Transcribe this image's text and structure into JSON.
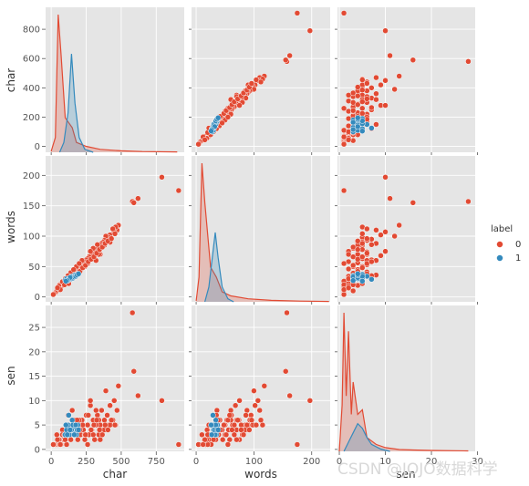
{
  "chart_data": {
    "type": "scatter",
    "kind": "pairplot",
    "variables": [
      "char",
      "words",
      "sen"
    ],
    "ranges": {
      "char": [
        -40,
        950
      ],
      "words": [
        -8,
        232
      ],
      "sen": [
        -0.4,
        29.5
      ]
    },
    "y_ranges": {
      "char": [
        -40,
        950
      ],
      "words": [
        -8,
        232
      ],
      "sen": [
        -0.4,
        29.5
      ]
    },
    "ticks": {
      "char": [
        0,
        250,
        500,
        750
      ],
      "words": [
        0,
        100,
        200
      ],
      "sen": [
        0,
        10,
        20,
        30
      ]
    },
    "y_ticks": {
      "char": [
        0,
        200,
        400,
        600,
        800
      ],
      "words": [
        0,
        50,
        100,
        150,
        200
      ],
      "sen": [
        0,
        5,
        10,
        15,
        20,
        25
      ]
    },
    "hue": "label",
    "legend": {
      "title": "label",
      "placement": "center-right",
      "entries": [
        "0",
        "1"
      ]
    },
    "colors": {
      "0": "#E24A33",
      "1": "#348ABD",
      "panel_bg": "#E5E5E5",
      "grid": "#ffffff"
    },
    "grid": true,
    "series": [
      {
        "name": "0",
        "points": [
          [
            910,
            175,
            1
          ],
          [
            790,
            197,
            10
          ],
          [
            620,
            162,
            11
          ],
          [
            580,
            157,
            28
          ],
          [
            590,
            155,
            16
          ],
          [
            480,
            118,
            13
          ],
          [
            470,
            110,
            8
          ],
          [
            460,
            115,
            5
          ],
          [
            450,
            107,
            10
          ],
          [
            440,
            112,
            6
          ],
          [
            420,
            102,
            9
          ],
          [
            410,
            98,
            5
          ],
          [
            400,
            95,
            7
          ],
          [
            390,
            100,
            12
          ],
          [
            380,
            93,
            6
          ],
          [
            370,
            90,
            4
          ],
          [
            360,
            88,
            8
          ],
          [
            350,
            85,
            5
          ],
          [
            340,
            82,
            3
          ],
          [
            330,
            86,
            7
          ],
          [
            320,
            78,
            5
          ],
          [
            310,
            75,
            2
          ],
          [
            300,
            74,
            6
          ],
          [
            290,
            70,
            4
          ],
          [
            280,
            68,
            9
          ],
          [
            270,
            66,
            3
          ],
          [
            260,
            63,
            5
          ],
          [
            250,
            61,
            7
          ],
          [
            240,
            58,
            2
          ],
          [
            230,
            56,
            4
          ],
          [
            220,
            53,
            6
          ],
          [
            210,
            51,
            3
          ],
          [
            200,
            48,
            5
          ],
          [
            190,
            46,
            2
          ],
          [
            180,
            44,
            4
          ],
          [
            170,
            41,
            6
          ],
          [
            160,
            39,
            3
          ],
          [
            150,
            36,
            8
          ],
          [
            140,
            34,
            2
          ],
          [
            130,
            31,
            4
          ],
          [
            120,
            29,
            5
          ],
          [
            110,
            26,
            1
          ],
          [
            100,
            24,
            3
          ],
          [
            90,
            22,
            2
          ],
          [
            80,
            19,
            4
          ],
          [
            70,
            17,
            1
          ],
          [
            60,
            14,
            2
          ],
          [
            50,
            12,
            1
          ],
          [
            40,
            10,
            3
          ],
          [
            30,
            7,
            1
          ],
          [
            20,
            5,
            1
          ],
          [
            15,
            4,
            1
          ],
          [
            350,
            70,
            2
          ],
          [
            300,
            80,
            3
          ],
          [
            260,
            55,
            1
          ],
          [
            220,
            60,
            6
          ],
          [
            180,
            50,
            5
          ],
          [
            140,
            40,
            4
          ],
          [
            100,
            30,
            2
          ],
          [
            60,
            20,
            1
          ],
          [
            320,
            60,
            8
          ],
          [
            280,
            75,
            10
          ],
          [
            240,
            50,
            3
          ],
          [
            200,
            55,
            6
          ],
          [
            160,
            45,
            4
          ],
          [
            120,
            35,
            7
          ],
          [
            80,
            25,
            3
          ],
          [
            420,
            90,
            5
          ],
          [
            380,
            85,
            4
          ],
          [
            340,
            70,
            6
          ],
          [
            55,
            18,
            2
          ],
          [
            65,
            12,
            1
          ],
          [
            45,
            15,
            2
          ],
          [
            95,
            20,
            3
          ],
          [
            125,
            22,
            5
          ],
          [
            165,
            32,
            3
          ],
          [
            185,
            38,
            6
          ],
          [
            205,
            42,
            4
          ],
          [
            225,
            48,
            5
          ],
          [
            245,
            52,
            3
          ],
          [
            265,
            58,
            7
          ],
          [
            285,
            62,
            4
          ],
          [
            305,
            66,
            5
          ],
          [
            325,
            72,
            6
          ],
          [
            345,
            78,
            4
          ],
          [
            365,
            82,
            3
          ],
          [
            385,
            88,
            5
          ],
          [
            405,
            92,
            4
          ],
          [
            430,
            96,
            6
          ],
          [
            455,
            104,
            5
          ]
        ]
      },
      {
        "name": "1",
        "points": [
          [
            100,
            28,
            3
          ],
          [
            110,
            30,
            4
          ],
          [
            120,
            27,
            5
          ],
          [
            130,
            31,
            3
          ],
          [
            140,
            33,
            4
          ],
          [
            150,
            34,
            6
          ],
          [
            160,
            32,
            5
          ],
          [
            170,
            36,
            4
          ],
          [
            180,
            35,
            3
          ],
          [
            190,
            37,
            5
          ],
          [
            125,
            29,
            7
          ],
          [
            145,
            30,
            4
          ],
          [
            155,
            31,
            5
          ],
          [
            165,
            33,
            3
          ],
          [
            135,
            32,
            4
          ],
          [
            115,
            27,
            3
          ],
          [
            175,
            34,
            5
          ],
          [
            185,
            36,
            4
          ],
          [
            105,
            26,
            5
          ],
          [
            195,
            38,
            4
          ]
        ]
      }
    ],
    "kde": {
      "char": {
        "0": [
          [
            0,
            0.002
          ],
          [
            30,
            0.03
          ],
          [
            50,
            0.28
          ],
          [
            70,
            0.2
          ],
          [
            100,
            0.07
          ],
          [
            150,
            0.05
          ],
          [
            180,
            0.02
          ],
          [
            250,
            0.012
          ],
          [
            350,
            0.006
          ],
          [
            500,
            0.003
          ],
          [
            650,
            0.0015
          ],
          [
            900,
            0.0007
          ]
        ],
        "1": [
          [
            60,
            0.0
          ],
          [
            90,
            0.02
          ],
          [
            120,
            0.08
          ],
          [
            145,
            0.2
          ],
          [
            170,
            0.1
          ],
          [
            200,
            0.03
          ],
          [
            240,
            0.006
          ],
          [
            300,
            0.0
          ]
        ]
      },
      "words": {
        "0": [
          [
            0,
            0.002
          ],
          [
            5,
            0.05
          ],
          [
            10,
            0.28
          ],
          [
            15,
            0.2
          ],
          [
            25,
            0.07
          ],
          [
            35,
            0.05
          ],
          [
            45,
            0.02
          ],
          [
            60,
            0.012
          ],
          [
            90,
            0.006
          ],
          [
            130,
            0.003
          ],
          [
            180,
            0.0015
          ],
          [
            230,
            0.0007
          ]
        ],
        "1": [
          [
            15,
            0.0
          ],
          [
            22,
            0.03
          ],
          [
            28,
            0.09
          ],
          [
            33,
            0.14
          ],
          [
            38,
            0.09
          ],
          [
            45,
            0.03
          ],
          [
            55,
            0.006
          ],
          [
            65,
            0.0
          ]
        ]
      },
      "sen": {
        "0": [
          [
            0,
            0.0
          ],
          [
            0.6,
            0.1
          ],
          [
            1,
            0.3
          ],
          [
            1.5,
            0.12
          ],
          [
            2,
            0.26
          ],
          [
            2.6,
            0.08
          ],
          [
            3,
            0.15
          ],
          [
            4,
            0.08
          ],
          [
            5,
            0.09
          ],
          [
            6,
            0.03
          ],
          [
            8,
            0.015
          ],
          [
            10,
            0.008
          ],
          [
            13,
            0.004
          ],
          [
            16,
            0.003
          ],
          [
            20,
            0.002
          ],
          [
            28,
            0.001
          ]
        ],
        "1": [
          [
            1,
            0.0
          ],
          [
            2,
            0.02
          ],
          [
            3,
            0.04
          ],
          [
            4,
            0.06
          ],
          [
            5,
            0.05
          ],
          [
            6,
            0.03
          ],
          [
            7,
            0.015
          ],
          [
            9,
            0.005
          ],
          [
            11,
            0.0
          ]
        ]
      }
    },
    "watermark": "CSDN @JOJO数据科学"
  }
}
